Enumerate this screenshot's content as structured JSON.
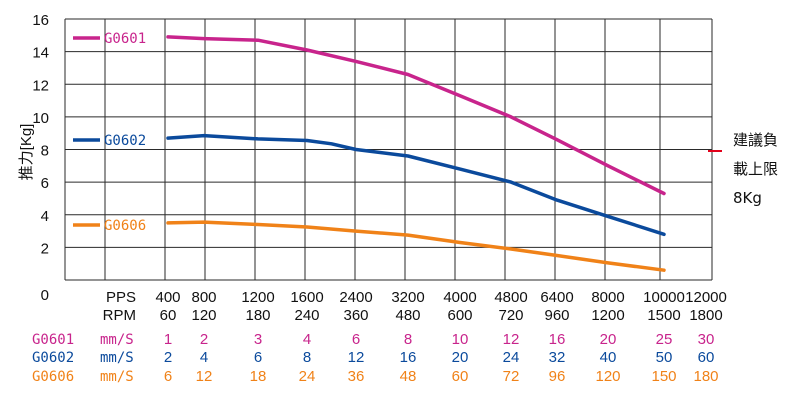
{
  "chart_data": {
    "type": "line",
    "ylabel": "推力[Kg]",
    "ylim": [
      0,
      16
    ],
    "yticks": [
      "16",
      "14",
      "12",
      "10",
      "8",
      "6",
      "4",
      "2",
      "0"
    ],
    "xlim": [
      0,
      12000
    ],
    "grid": true,
    "pps_label": "PPS",
    "rpm_label": "RPM",
    "pps_ticks": [
      "400",
      "800",
      "1200",
      "1600",
      "2400",
      "3200",
      "4000",
      "4800",
      "6400",
      "8000",
      "10000",
      "12000"
    ],
    "rpm_ticks": [
      "60",
      "120",
      "180",
      "240",
      "360",
      "480",
      "600",
      "720",
      "960",
      "1200",
      "1500",
      "1800"
    ],
    "speed_unit": "mm/S",
    "series": [
      {
        "name": "G0601",
        "color": "#c8248c",
        "x": [
          400,
          800,
          1200,
          1600,
          2400,
          3200,
          4000,
          4800,
          6400,
          8000,
          10000
        ],
        "values": [
          14.9,
          14.8,
          14.7,
          14.1,
          13.4,
          12.6,
          11.3,
          10.0,
          8.6,
          7.0,
          5.3
        ],
        "speeds": [
          "1",
          "2",
          "3",
          "4",
          "6",
          "8",
          "10",
          "12",
          "16",
          "20",
          "25",
          "30"
        ]
      },
      {
        "name": "G0602",
        "color": "#0b4a9c",
        "x": [
          400,
          800,
          1200,
          1600,
          2000,
          2400,
          3200,
          4000,
          4800,
          6400,
          8000,
          10000
        ],
        "values": [
          8.7,
          8.85,
          8.65,
          8.55,
          8.35,
          8.0,
          7.6,
          6.8,
          6.0,
          4.9,
          3.9,
          2.8
        ],
        "speeds": [
          "2",
          "4",
          "6",
          "8",
          "12",
          "16",
          "20",
          "24",
          "32",
          "40",
          "50",
          "60"
        ]
      },
      {
        "name": "G0606",
        "color": "#f08218",
        "x": [
          400,
          800,
          1200,
          1600,
          2400,
          3200,
          4000,
          4800,
          6400,
          8000,
          10000
        ],
        "values": [
          3.5,
          3.55,
          3.4,
          3.25,
          3.0,
          2.75,
          2.3,
          1.9,
          1.5,
          1.05,
          0.6
        ],
        "speeds": [
          "6",
          "12",
          "18",
          "24",
          "36",
          "48",
          "60",
          "72",
          "96",
          "120",
          "150",
          "180"
        ]
      }
    ],
    "note": [
      "建議負",
      "載上限",
      "8Kg"
    ]
  }
}
